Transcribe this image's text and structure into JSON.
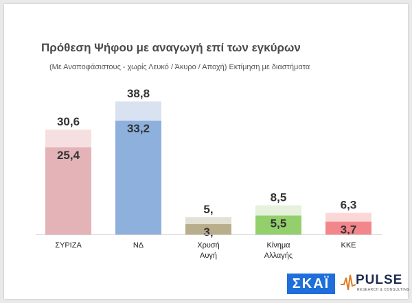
{
  "title": "Πρόθεση Ψήφου με αναγωγή επί των εγκύρων",
  "subtitle": "(Με Αναποφάσιστους - χωρίς Λευκό / Άκυρο / Αποχή)   Εκτίμηση με διαστήματα",
  "logos": {
    "skai": "ΣΚΑΪ",
    "pulse": "PULSE",
    "pulse_tagline": "RESEARCH & CONSULTING"
  },
  "chart_data": {
    "type": "bar",
    "categories": [
      "ΣΥΡΙΖΑ",
      "ΝΔ",
      "Χρυσή Αυγή",
      "Κίνημα Αλλαγής",
      "ΚΚΕ"
    ],
    "category_lines": [
      [
        "ΣΥΡΙΖΑ"
      ],
      [
        "ΝΔ"
      ],
      [
        "Χρυσή",
        "Αυγή"
      ],
      [
        "Κίνημα",
        "Αλλαγής"
      ],
      [
        "ΚΚΕ"
      ]
    ],
    "series": [
      {
        "values": [
          25.4,
          33.2,
          3.0,
          5.5,
          3.7
        ],
        "labels": [
          "25,4",
          "33,2",
          "3,",
          "5,5",
          "3,7"
        ]
      },
      {
        "values": [
          30.6,
          38.8,
          5.0,
          8.5,
          6.3
        ],
        "labels": [
          "30,6",
          "38,8",
          "5,",
          "8,5",
          "6,3"
        ]
      }
    ],
    "colors": {
      "lower": [
        "#e3b3b7",
        "#8eb0dd",
        "#b8ae8c",
        "#93d06c",
        "#f2868b"
      ],
      "upper": [
        "#f6dfe0",
        "#d8e2f1",
        "#e3e0d4",
        "#e5f1da",
        "#fbd7d8"
      ]
    },
    "ylim": [
      0,
      40
    ],
    "grid": false,
    "legend": "none"
  }
}
